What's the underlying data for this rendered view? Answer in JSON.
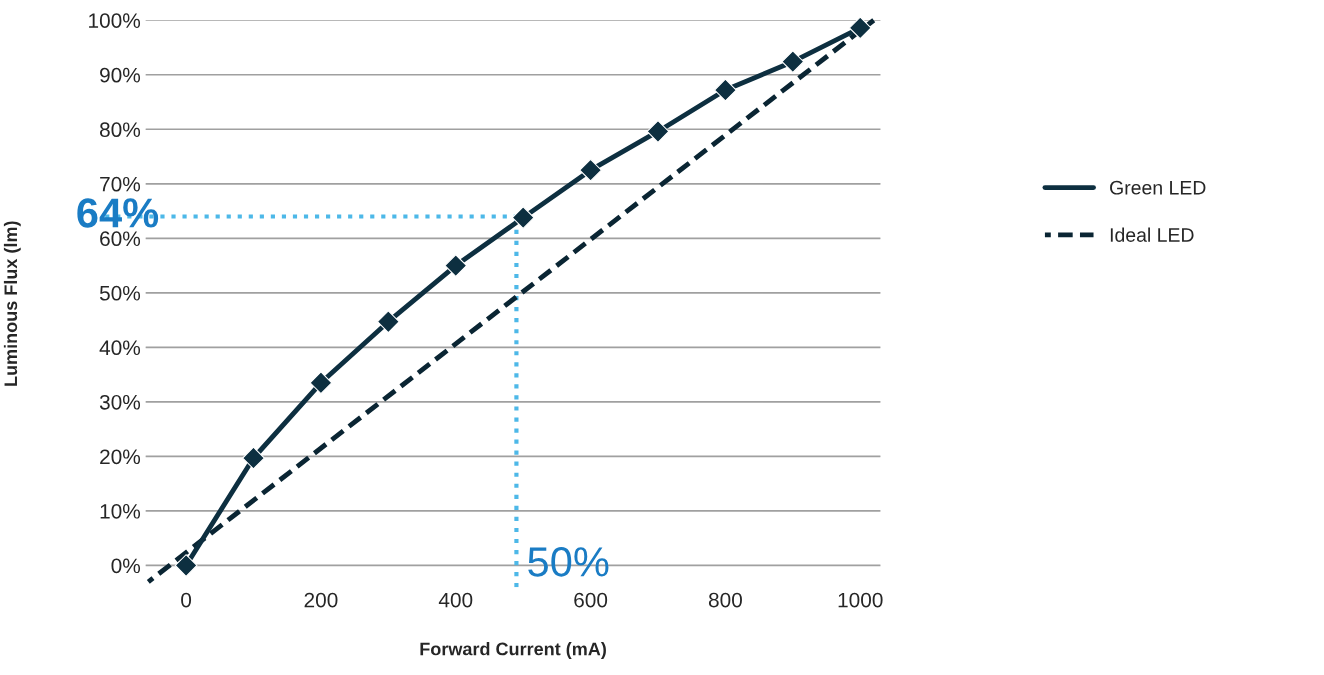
{
  "chart_data": {
    "type": "line",
    "xlabel": "Forward Current (mA)",
    "ylabel": "Luminous Flux (lm)",
    "xlim": [
      -60,
      1030
    ],
    "ylim": [
      -4,
      100
    ],
    "xticks": [
      0,
      200,
      400,
      600,
      800,
      1000
    ],
    "yticks": [
      {
        "value": 0,
        "label": "0%"
      },
      {
        "value": 10,
        "label": "10%"
      },
      {
        "value": 20,
        "label": "20%"
      },
      {
        "value": 30,
        "label": "30%"
      },
      {
        "value": 40,
        "label": "40%"
      },
      {
        "value": 50,
        "label": "50%"
      },
      {
        "value": 60,
        "label": "60%"
      },
      {
        "value": 70,
        "label": "70%"
      },
      {
        "value": 80,
        "label": "80%"
      },
      {
        "value": 90,
        "label": "90%"
      },
      {
        "value": 100,
        "label": "100%"
      }
    ],
    "grid": "y",
    "legend": "right",
    "series": [
      {
        "name": "Green LED",
        "color": "#0d2f40",
        "marker": "diamond",
        "line_style": "solid",
        "x": [
          0,
          100,
          200,
          300,
          400,
          500,
          600,
          700,
          800,
          900,
          1000
        ],
        "values": [
          0,
          19.7,
          33.5,
          44.7,
          55,
          63.8,
          72.5,
          79.6,
          87.2,
          92.4,
          98.6
        ]
      },
      {
        "name": "Ideal LED",
        "color": "#0a2533",
        "marker": "none",
        "line_style": "dashed",
        "x": [
          -56,
          1020
        ],
        "values": [
          -3,
          100
        ]
      }
    ],
    "ref_lines": [
      {
        "axis": "y",
        "value": 64,
        "color": "#4db8e8",
        "line_style": "dotted"
      },
      {
        "axis": "x",
        "value": 490,
        "color": "#4db8e8",
        "line_style": "dotted"
      }
    ],
    "annotations": [
      "64%",
      "50%"
    ]
  }
}
